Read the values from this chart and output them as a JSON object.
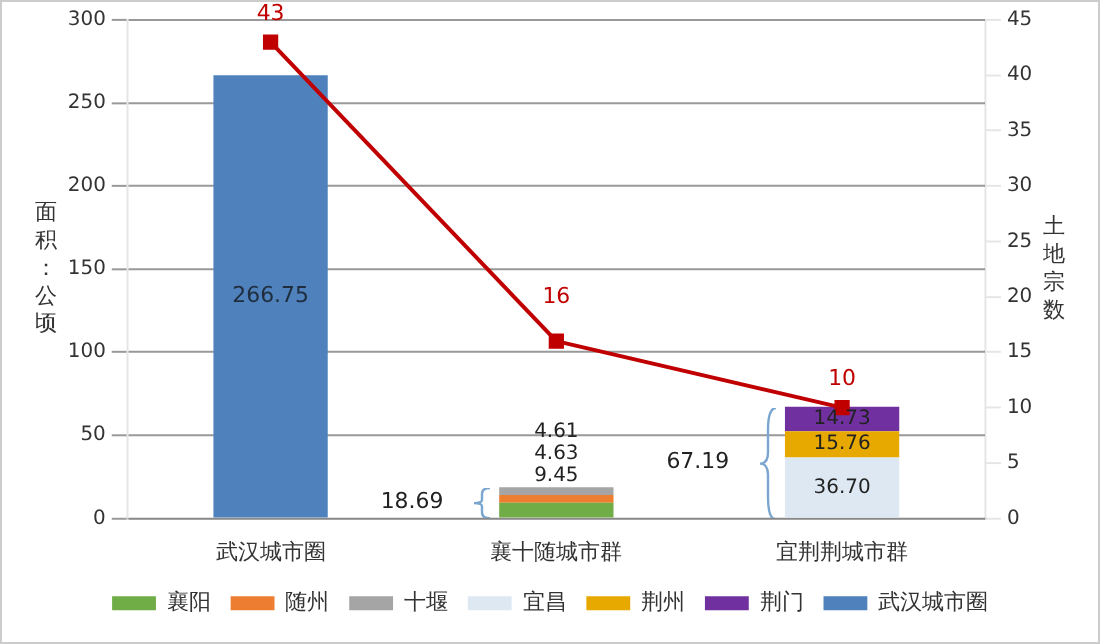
{
  "chart_data": {
    "type": "bar",
    "stacked": true,
    "categories": [
      "武汉城市圈",
      "襄十随城市群",
      "宜荆荆城市群"
    ],
    "ylabel": "面积：公顷",
    "y2label": "土地宗数",
    "ylim": [
      0,
      300
    ],
    "yticks": [
      0,
      50,
      100,
      150,
      200,
      250,
      300
    ],
    "y2lim": [
      0,
      45
    ],
    "y2ticks": [
      0,
      5,
      10,
      15,
      20,
      25,
      30,
      35,
      40,
      45
    ],
    "grid": "y",
    "legend": "bottom",
    "totals": [
      null,
      "18.69",
      "67.19"
    ],
    "series": [
      {
        "name": "襄阳",
        "color": "#70ad47",
        "values": [
          null,
          9.45,
          null
        ],
        "value_labels": [
          null,
          "9.45",
          null
        ]
      },
      {
        "name": "随州",
        "color": "#ed7d31",
        "values": [
          null,
          4.63,
          null
        ],
        "value_labels": [
          null,
          "4.63",
          null
        ]
      },
      {
        "name": "十堰",
        "color": "#a5a5a5",
        "values": [
          null,
          4.61,
          null
        ],
        "value_labels": [
          null,
          "4.61",
          null
        ]
      },
      {
        "name": "宜昌",
        "color": "#dde8f3",
        "values": [
          null,
          null,
          36.7
        ],
        "value_labels": [
          null,
          null,
          "36.70"
        ]
      },
      {
        "name": "荆州",
        "color": "#e7a800",
        "values": [
          null,
          null,
          15.76
        ],
        "value_labels": [
          null,
          null,
          "15.76"
        ]
      },
      {
        "name": "荆门",
        "color": "#7030a0",
        "values": [
          null,
          null,
          14.73
        ],
        "value_labels": [
          null,
          null,
          "14.73"
        ]
      },
      {
        "name": "武汉城市圈",
        "color": "#4f81bd",
        "values": [
          266.75,
          null,
          null
        ],
        "value_labels": [
          "266.75",
          null,
          null
        ]
      },
      {
        "type": "line",
        "axis": "y2",
        "color": "#c00000",
        "marker": "square",
        "values": [
          43,
          16,
          10
        ],
        "value_labels": [
          "43",
          "16",
          "10"
        ]
      }
    ]
  }
}
